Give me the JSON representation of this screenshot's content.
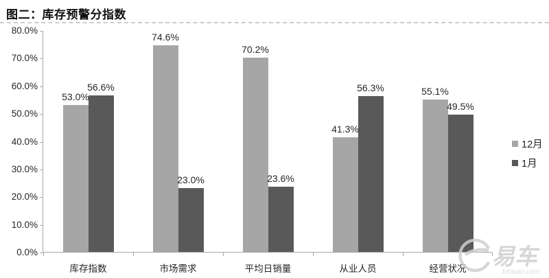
{
  "page_title": "图二：库存预警分指数",
  "chart_data": {
    "type": "bar",
    "title": "图二：库存预警分指数",
    "categories": [
      "库存指数",
      "市场需求",
      "平均日销量",
      "从业人员",
      "经营状况"
    ],
    "series": [
      {
        "name": "12月",
        "color": "#a6a6a6",
        "values": [
          53.0,
          74.6,
          70.2,
          41.3,
          55.1
        ],
        "labels": [
          "53.0%",
          "74.6%",
          "70.2%",
          "41.3%",
          "55.1%"
        ]
      },
      {
        "name": "1月",
        "color": "#595959",
        "values": [
          56.6,
          23.0,
          23.6,
          56.3,
          49.5
        ],
        "labels": [
          "56.6%",
          "23.0%",
          "23.6%",
          "56.3%",
          "49.5%"
        ]
      }
    ],
    "ylim": [
      0,
      80
    ],
    "yticks": [
      {
        "value": 80,
        "label": "80.0%"
      },
      {
        "value": 70,
        "label": "70.0%"
      },
      {
        "value": 60,
        "label": "60.0%"
      },
      {
        "value": 50,
        "label": "50.0%"
      },
      {
        "value": 40,
        "label": "40.0%"
      },
      {
        "value": 30,
        "label": "30.0%"
      },
      {
        "value": 20,
        "label": "20.0%"
      },
      {
        "value": 10,
        "label": "10.0%"
      },
      {
        "value": 0,
        "label": "0.0%"
      }
    ],
    "grid": false,
    "legend_position": "right",
    "value_labels_shown": true
  },
  "watermark": {
    "brand": "易车",
    "site": "bitauto.com"
  }
}
